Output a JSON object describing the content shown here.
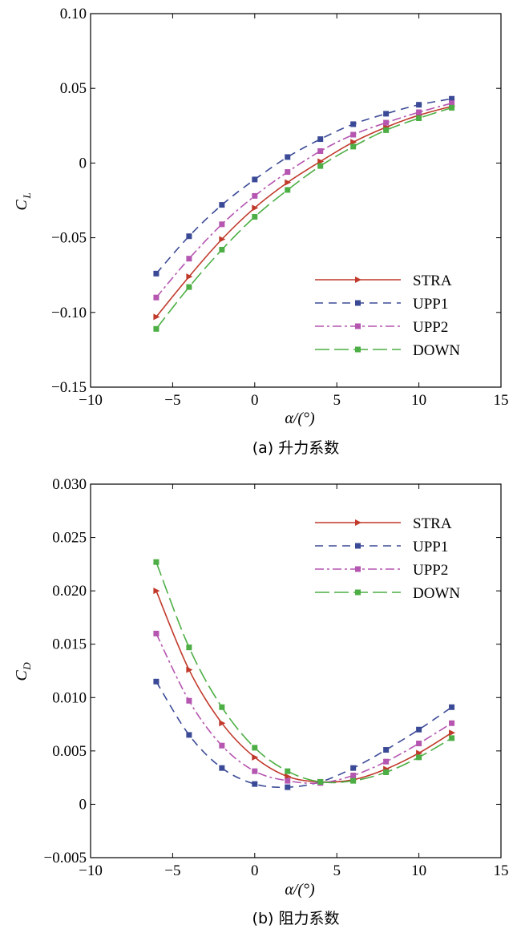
{
  "chart_data": [
    {
      "type": "line",
      "caption": "(a) 升力系数",
      "ylabel_main": "C",
      "ylabel_sub": "L",
      "xlabel": "α/(°)",
      "xlim": [
        -10,
        15
      ],
      "ylim": [
        -0.15,
        0.1
      ],
      "xticks": [
        "−10",
        "−5",
        "0",
        "5",
        "10",
        "15"
      ],
      "yticks": [
        "−0.15",
        "−0.10",
        "−0.05",
        "0",
        "0.05",
        "0.10"
      ],
      "legend_position": "bottom-right",
      "x": [
        -6,
        -4,
        -2,
        0,
        2,
        4,
        6,
        8,
        10,
        12
      ],
      "series": [
        {
          "name": "STRA",
          "color": "#c0392b",
          "dash": "solid",
          "marker": "triangle-right",
          "values": [
            -0.103,
            -0.076,
            -0.051,
            -0.03,
            -0.013,
            0.001,
            0.014,
            0.024,
            0.032,
            0.038
          ]
        },
        {
          "name": "UPP1",
          "color": "#3b4a96",
          "dash": "dashed",
          "marker": "square",
          "values": [
            -0.074,
            -0.049,
            -0.028,
            -0.011,
            0.004,
            0.016,
            0.026,
            0.033,
            0.039,
            0.043
          ]
        },
        {
          "name": "UPP2",
          "color": "#b556b0",
          "dash": "dashdot",
          "marker": "square",
          "values": [
            -0.09,
            -0.064,
            -0.041,
            -0.022,
            -0.006,
            0.008,
            0.019,
            0.027,
            0.034,
            0.04
          ]
        },
        {
          "name": "DOWN",
          "color": "#4cae44",
          "dash": "longdash",
          "marker": "square",
          "values": [
            -0.111,
            -0.083,
            -0.058,
            -0.036,
            -0.018,
            -0.002,
            0.011,
            0.022,
            0.03,
            0.037
          ]
        }
      ]
    },
    {
      "type": "line",
      "caption": "(b) 阻力系数",
      "ylabel_main": "C",
      "ylabel_sub": "D",
      "xlabel": "α/(°)",
      "xlim": [
        -10,
        15
      ],
      "ylim": [
        -0.005,
        0.03
      ],
      "xticks": [
        "−10",
        "−5",
        "0",
        "5",
        "10",
        "15"
      ],
      "yticks": [
        "−0.005",
        "0",
        "0.005",
        "0.010",
        "0.015",
        "0.020",
        "0.025",
        "0.030"
      ],
      "legend_position": "top-right",
      "x": [
        -6,
        -4,
        -2,
        0,
        2,
        4,
        6,
        8,
        10,
        12
      ],
      "series": [
        {
          "name": "STRA",
          "color": "#c0392b",
          "dash": "solid",
          "marker": "triangle-right",
          "values": [
            0.02,
            0.0126,
            0.0076,
            0.0044,
            0.0026,
            0.0021,
            0.0023,
            0.0033,
            0.0048,
            0.0067
          ]
        },
        {
          "name": "UPP1",
          "color": "#3b4a96",
          "dash": "dashed",
          "marker": "square",
          "values": [
            0.0115,
            0.0065,
            0.0034,
            0.0019,
            0.0016,
            0.0021,
            0.0034,
            0.0051,
            0.007,
            0.0091
          ]
        },
        {
          "name": "UPP2",
          "color": "#b556b0",
          "dash": "dashdot",
          "marker": "square",
          "values": [
            0.016,
            0.0097,
            0.0055,
            0.0031,
            0.0022,
            0.002,
            0.0027,
            0.004,
            0.0057,
            0.0076
          ]
        },
        {
          "name": "DOWN",
          "color": "#4cae44",
          "dash": "longdash",
          "marker": "square",
          "values": [
            0.0227,
            0.0147,
            0.0091,
            0.0053,
            0.0031,
            0.0021,
            0.0022,
            0.003,
            0.0044,
            0.0062
          ]
        }
      ]
    }
  ]
}
